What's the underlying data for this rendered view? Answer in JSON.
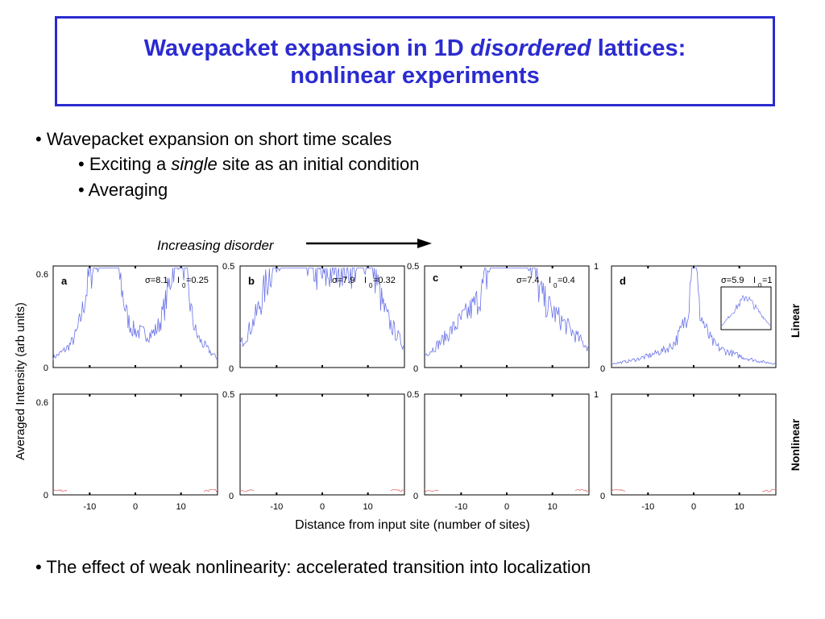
{
  "title": {
    "line1_before": "Wavepacket expansion in 1D ",
    "line1_italic": "disordered",
    "line1_after": " lattices:",
    "line2": "nonlinear experiments"
  },
  "bullets": {
    "b1": "• Wavepacket expansion on short time scales",
    "b2_before": "• Exciting a ",
    "b2_italic": "single",
    "b2_after": " site as an initial condition",
    "b3": "• Averaging",
    "b4": "• The effect of weak nonlinearity: accelerated transition into localization"
  },
  "annotation": {
    "label": "Increasing disorder"
  },
  "colors": {
    "title": "#2b2bd0",
    "linear": "#6b74e8",
    "nonlinear": "#e06060"
  },
  "chart_data": {
    "type": "line",
    "ylabel": "Averaged Intensity (arb units)",
    "xlabel": "Distance from input site (number of sites)",
    "row_labels": [
      "Linear",
      "Nonlinear"
    ],
    "x_ticks": [
      -10,
      0,
      10
    ],
    "panels": [
      {
        "id": "a",
        "sigma_text": "σ=8.1",
        "i0_text": "I",
        "i0_sub": "0",
        "i0_val": "=0.25",
        "ylim": [
          0,
          0.6
        ],
        "ytick_top": "0.6",
        "ytick_zero": "0",
        "linear_peaks": [
          [
            -18,
            0.02,
            5
          ],
          [
            -12,
            0.12,
            4
          ],
          [
            -9,
            0.45,
            2
          ],
          [
            -6,
            0.5,
            1.5
          ],
          [
            -4,
            0.28,
            1.5
          ],
          [
            0,
            0.22,
            6
          ],
          [
            8,
            0.3,
            2
          ],
          [
            10,
            0.45,
            1.5
          ],
          [
            13,
            0.14,
            3
          ],
          [
            18,
            0.02,
            5
          ]
        ]
      },
      {
        "id": "b",
        "sigma_text": "σ=7.9",
        "i0_text": "I",
        "i0_sub": "0",
        "i0_val": "=0.32",
        "ylim": [
          0,
          0.5
        ],
        "ytick_top": "0.5",
        "ytick_zero": "0",
        "linear_peaks": [
          [
            -18,
            0.03,
            5
          ],
          [
            -13,
            0.18,
            4
          ],
          [
            -9,
            0.34,
            3
          ],
          [
            -5,
            0.3,
            3
          ],
          [
            0,
            0.32,
            6
          ],
          [
            5,
            0.3,
            3
          ],
          [
            10,
            0.38,
            2
          ],
          [
            14,
            0.18,
            3
          ],
          [
            18,
            0.03,
            4
          ]
        ]
      },
      {
        "id": "c",
        "sigma_text": "σ=7.4",
        "i0_text": "I",
        "i0_sub": "0",
        "i0_val": "=0.4",
        "ylim": [
          0,
          0.5
        ],
        "ytick_top": "0.5",
        "ytick_zero": "0",
        "linear_peaks": [
          [
            -16,
            0.03,
            6
          ],
          [
            -10,
            0.12,
            5
          ],
          [
            -4,
            0.22,
            5
          ],
          [
            0,
            0.37,
            3
          ],
          [
            2,
            0.32,
            3
          ],
          [
            6,
            0.22,
            5
          ],
          [
            12,
            0.12,
            5
          ],
          [
            18,
            0.03,
            5
          ]
        ]
      },
      {
        "id": "d",
        "sigma_text": "σ=5.9",
        "i0_text": "I",
        "i0_sub": "0",
        "i0_val": "=1",
        "ylim": [
          0,
          1
        ],
        "ytick_top": "1",
        "ytick_zero": "0",
        "linear_peaks": [
          [
            0,
            0.95,
            0.5
          ],
          [
            0,
            0.4,
            2
          ],
          [
            0,
            0.18,
            7
          ],
          [
            0,
            0.07,
            15
          ]
        ]
      }
    ]
  }
}
